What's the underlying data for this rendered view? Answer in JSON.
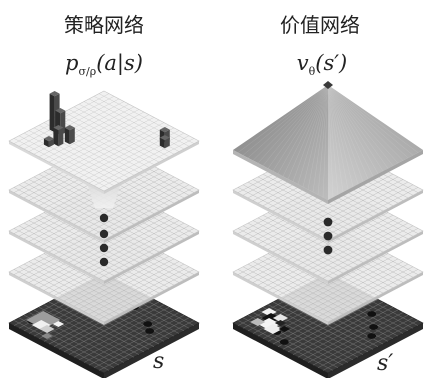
{
  "policy": {
    "title": "策略网络",
    "formula": {
      "base": "p",
      "subscript": "σ/ρ",
      "args": "(a|s)"
    },
    "state_label": "s"
  },
  "value": {
    "title": "价值网络",
    "formula": {
      "base": "v",
      "subscript": "θ",
      "args": "(s′)"
    },
    "state_label": "s′"
  },
  "colors": {
    "board": "#3a3a3a",
    "layer_fill": "#e9e9e9",
    "grid": "#b9b9b9",
    "dot": "#2a2a2a",
    "bar": "#3b3b3b",
    "pyramid_dark": "#8c8c8c",
    "pyramid_light": "#c9c9c9"
  },
  "icons": {
    "go_board": "go-board-icon",
    "hidden_layer": "hidden-layer-icon",
    "output_layer": "output-layer-icon",
    "pyramid": "value-pyramid-icon"
  }
}
